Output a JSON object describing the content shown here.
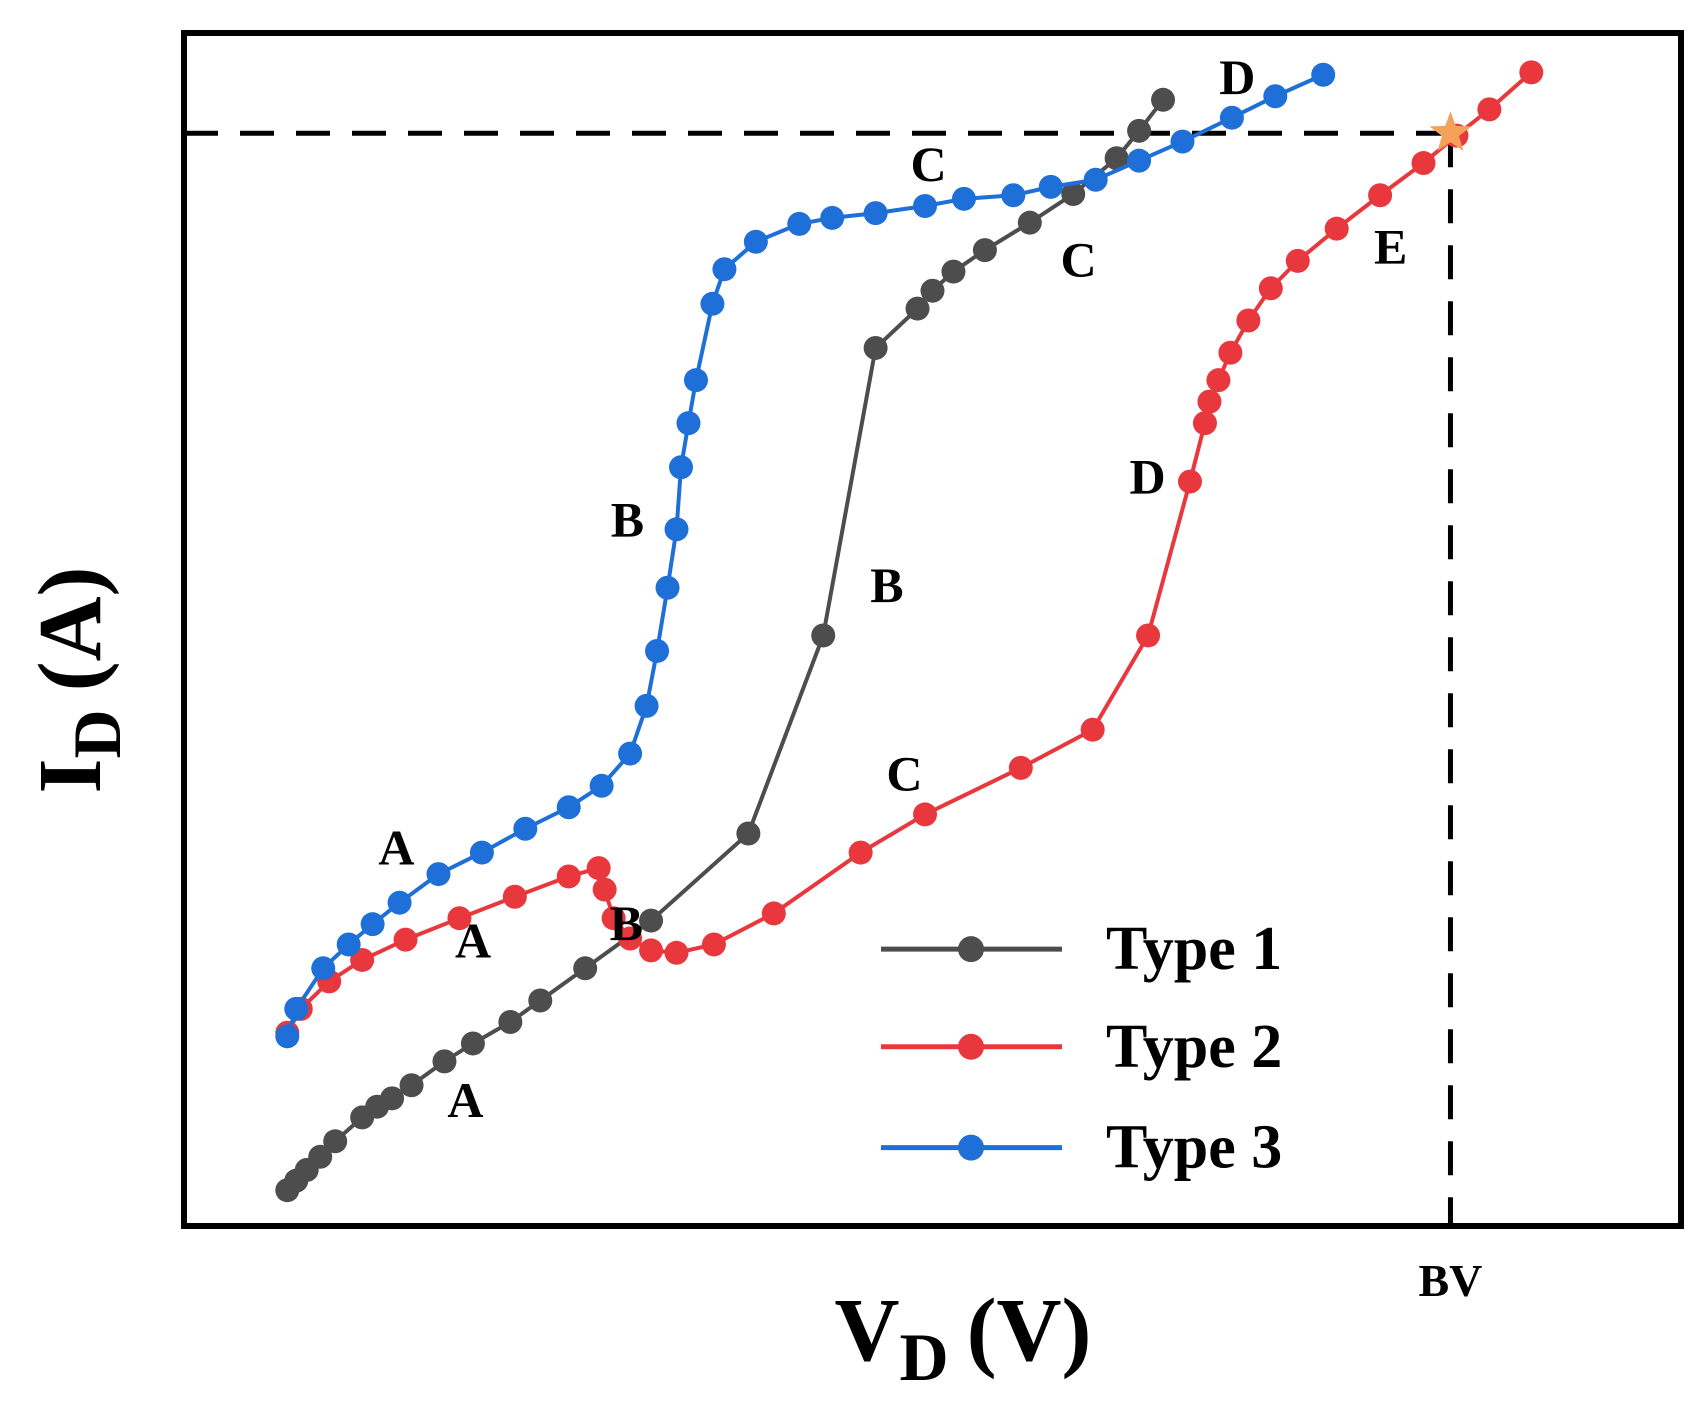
{
  "chart_data": {
    "type": "line",
    "x_label": {
      "main": "V",
      "sub": "D",
      "unit": "(V)"
    },
    "y_label": {
      "main": "I",
      "sub": "D",
      "unit": "(A)"
    },
    "xlim": [
      0,
      100
    ],
    "ylim": [
      0,
      100
    ],
    "xticks": [
      {
        "value": 84.6,
        "label": "BV"
      }
    ],
    "hline": 91.6,
    "legend": "lower right",
    "series": [
      {
        "name": "Type 1",
        "color": "#4d4d4d",
        "x": [
          6.9,
          7.5,
          8.2,
          9.1,
          10.1,
          11.9,
          12.9,
          13.9,
          15.2,
          17.4,
          19.3,
          21.8,
          23.8,
          26.8,
          31.2,
          37.7,
          42.7,
          46.2,
          49.0,
          50.0,
          51.4,
          53.5,
          56.5,
          59.4,
          62.3,
          63.8,
          65.4
        ],
        "values": [
          3.0,
          3.8,
          4.7,
          5.8,
          7.1,
          9.1,
          10.0,
          10.7,
          11.8,
          13.8,
          15.3,
          17.1,
          18.9,
          21.6,
          25.6,
          32.9,
          49.5,
          73.6,
          76.9,
          78.4,
          80.0,
          81.8,
          84.1,
          86.5,
          89.5,
          91.8,
          94.4
        ]
      },
      {
        "name": "Type 2",
        "color": "#e8383d",
        "x": [
          6.9,
          7.8,
          9.7,
          11.9,
          14.8,
          18.4,
          22.1,
          25.7,
          27.7,
          28.1,
          28.7,
          29.8,
          31.2,
          32.9,
          35.4,
          39.4,
          45.2,
          49.5,
          55.9,
          60.7,
          64.4,
          67.2,
          68.2,
          68.5,
          69.1,
          69.9,
          71.1,
          72.6,
          74.4,
          77.0,
          79.9,
          82.8,
          85.0,
          87.2,
          90.0
        ],
        "values": [
          16.2,
          18.2,
          20.5,
          22.3,
          24.0,
          25.8,
          27.6,
          29.3,
          30.0,
          28.2,
          25.8,
          24.1,
          23.1,
          22.9,
          23.6,
          26.2,
          31.3,
          34.5,
          38.4,
          41.6,
          49.5,
          62.4,
          67.3,
          69.1,
          70.9,
          73.2,
          75.9,
          78.6,
          80.9,
          83.6,
          86.4,
          89.1,
          91.4,
          93.6,
          96.7
        ]
      },
      {
        "name": "Type 3",
        "color": "#1f6fd8",
        "x": [
          6.9,
          7.5,
          9.3,
          11.0,
          12.6,
          14.4,
          17.0,
          19.9,
          22.8,
          25.7,
          27.9,
          29.8,
          30.9,
          31.6,
          32.3,
          32.9,
          33.2,
          33.7,
          34.2,
          35.3,
          36.1,
          38.2,
          41.1,
          43.3,
          46.2,
          49.5,
          52.1,
          55.4,
          57.9,
          60.9,
          63.8,
          66.7,
          70.0,
          72.9,
          76.1
        ],
        "values": [
          15.9,
          18.2,
          21.6,
          23.6,
          25.3,
          27.1,
          29.5,
          31.3,
          33.3,
          35.1,
          36.9,
          39.6,
          43.6,
          48.2,
          53.5,
          58.4,
          63.6,
          67.3,
          70.9,
          77.3,
          80.2,
          82.5,
          84.0,
          84.5,
          84.9,
          85.5,
          86.1,
          86.4,
          87.1,
          87.7,
          89.3,
          90.9,
          92.9,
          94.7,
          96.5
        ]
      }
    ],
    "annotations": [
      "A",
      "B",
      "C",
      "A",
      "B",
      "C",
      "D",
      "E",
      "A",
      "B",
      "C",
      "D"
    ]
  }
}
